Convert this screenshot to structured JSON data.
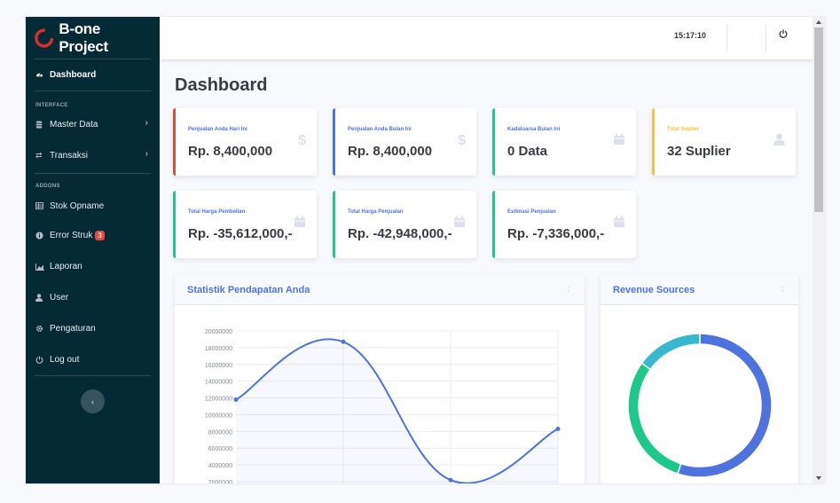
{
  "brand": {
    "name": "B-one Project"
  },
  "sidebar": {
    "dashboard": "Dashboard",
    "heading_interface": "INTERFACE",
    "master_data": "Master Data",
    "transaksi": "Transaksi",
    "heading_addons": "ADDONS",
    "stok_opname": "Stok Opname",
    "error_struk": "Error Struk",
    "error_struk_count": "3",
    "laporan": "Laporan",
    "user": "User",
    "pengaturan": "Pengaturan",
    "logout": "Log out"
  },
  "topbar": {
    "clock": "15:17:10"
  },
  "page": {
    "title": "Dashboard"
  },
  "cards": [
    {
      "label": "Penjualan Anda Hari Ini",
      "value": "Rp. 8,400,000",
      "icon": "dollar-icon",
      "color": "#e74a3b"
    },
    {
      "label": "Penjualan Anda Bulan Ini",
      "value": "Rp. 8,400,000",
      "icon": "dollar-icon",
      "color": "#4e73df"
    },
    {
      "label": "Kadaluarsa Bulan Ini",
      "value": "0 Data",
      "icon": "calendar-icon",
      "color": "#1cc88a"
    },
    {
      "label": "Total Suplier",
      "value": "32 Suplier",
      "icon": "user-icon",
      "color": "#f6c23e"
    },
    {
      "label": "Total Harga Pembelian",
      "value": "Rp. -35,612,000,-",
      "icon": "calendar-icon",
      "color": "#1cc88a"
    },
    {
      "label": "Total Harga Penjualan",
      "value": "Rp. -42,948,000,-",
      "icon": "calendar-icon",
      "color": "#1cc88a"
    },
    {
      "label": "Estimasi Penjualan",
      "value": "Rp. -7,336,000,-",
      "icon": "calendar-icon",
      "color": "#1cc88a"
    }
  ],
  "panels": {
    "area_title": "Statistik Pendapatan Anda",
    "pie_title": "Revenue Sources"
  },
  "chart_data": [
    {
      "type": "line",
      "title": "Statistik Pendapatan Anda",
      "yticks": [
        "2000000",
        "4000000",
        "6000000",
        "8000000",
        "10000000",
        "12000000",
        "14000000",
        "16000000",
        "18000000",
        "20000000"
      ],
      "ylim": [
        2000000,
        20000000
      ],
      "values": [
        11800000,
        18700000,
        2200000,
        8300000
      ],
      "color": "#4e73df",
      "fill": "rgba(78,115,223,0.05)"
    },
    {
      "type": "pie",
      "title": "Revenue Sources",
      "donut": true,
      "values": [
        55,
        30,
        15
      ],
      "colors": [
        "#4e73df",
        "#1cc88a",
        "#36b9cc"
      ]
    }
  ]
}
